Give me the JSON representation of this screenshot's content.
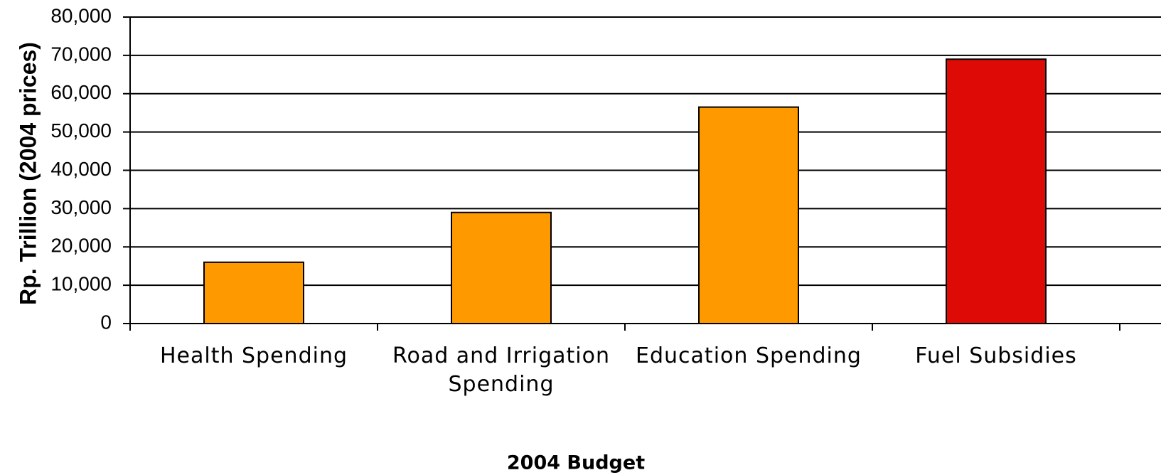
{
  "chart_data": {
    "type": "bar",
    "x_label": "2004 Budget",
    "y_label": "Rp. Trillion (2004 prices)",
    "categories": [
      "Health Spending",
      "Road and Irrigation Spending",
      "Education Spending",
      "Fuel Subsidies"
    ],
    "values": [
      16000,
      29000,
      56500,
      69000
    ],
    "colors": [
      "#ff9900",
      "#ff9900",
      "#ff9900",
      "#dd0a05"
    ],
    "ylim": [
      0,
      80000
    ],
    "yticks": [
      0,
      {
        "value": 10000,
        "label": "10,000"
      },
      {
        "value": 20000,
        "label": "20,000"
      },
      {
        "value": 30000,
        "label": "30,000"
      },
      {
        "value": 40000,
        "label": "40,000"
      },
      {
        "value": 50000,
        "label": "50,000"
      },
      {
        "value": 60000,
        "label": "60,000"
      },
      {
        "value": 70000,
        "label": "70,000"
      },
      {
        "value": 80000,
        "label": "80,000"
      }
    ],
    "grid": true
  }
}
